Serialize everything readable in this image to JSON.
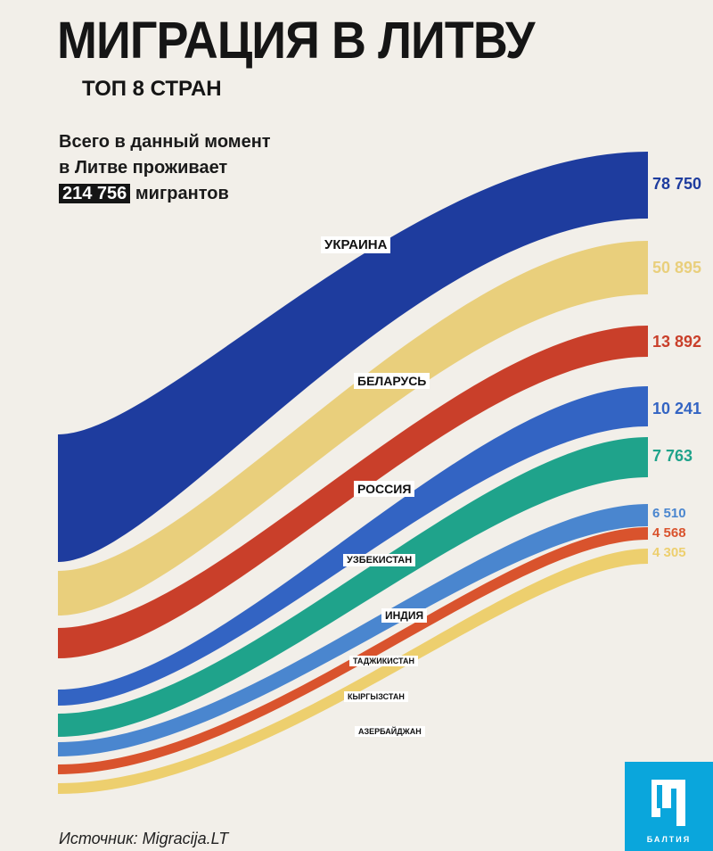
{
  "title": "МИГРАЦИЯ В ЛИТВУ",
  "subtitle": "ТОП 8 СТРАН",
  "total": {
    "line1": "Всего в данный момент",
    "line2": "в Литве проживает",
    "value": "214 756",
    "unit": "мигрантов"
  },
  "source": "Источник: Migracija.LT",
  "logo": {
    "text": "БАЛТИЯ",
    "color": "#0aa6dc"
  },
  "chart_data": {
    "type": "area",
    "subtype": "stream/sankey-style ribbons",
    "title": "МИГРАЦИЯ В ЛИТВУ",
    "series": [
      {
        "name": "УКРАИНА",
        "value": 78750,
        "value_label": "78 750",
        "color": "#1e3c9e"
      },
      {
        "name": "БЕЛАРУСЬ",
        "value": 50895,
        "value_label": "50 895",
        "color": "#e9cf7c"
      },
      {
        "name": "РОССИЯ",
        "value": 13892,
        "value_label": "13 892",
        "color": "#c93f2a"
      },
      {
        "name": "УЗБЕКИСТАН",
        "value": 10241,
        "value_label": "10 241",
        "color": "#3364c3"
      },
      {
        "name": "ИНДИЯ",
        "value": 7763,
        "value_label": "7 763",
        "color": "#1fa38b"
      },
      {
        "name": "ТАДЖИКИСТАН",
        "value": 6510,
        "value_label": "6 510",
        "color": "#4a86cf"
      },
      {
        "name": "КЫРГЫЗСТАН",
        "value": 4568,
        "value_label": "4 568",
        "color": "#d9532d"
      },
      {
        "name": "АЗЕРБАЙДЖАН",
        "value": 4305,
        "value_label": "4 305",
        "color": "#edcf6e"
      }
    ]
  }
}
